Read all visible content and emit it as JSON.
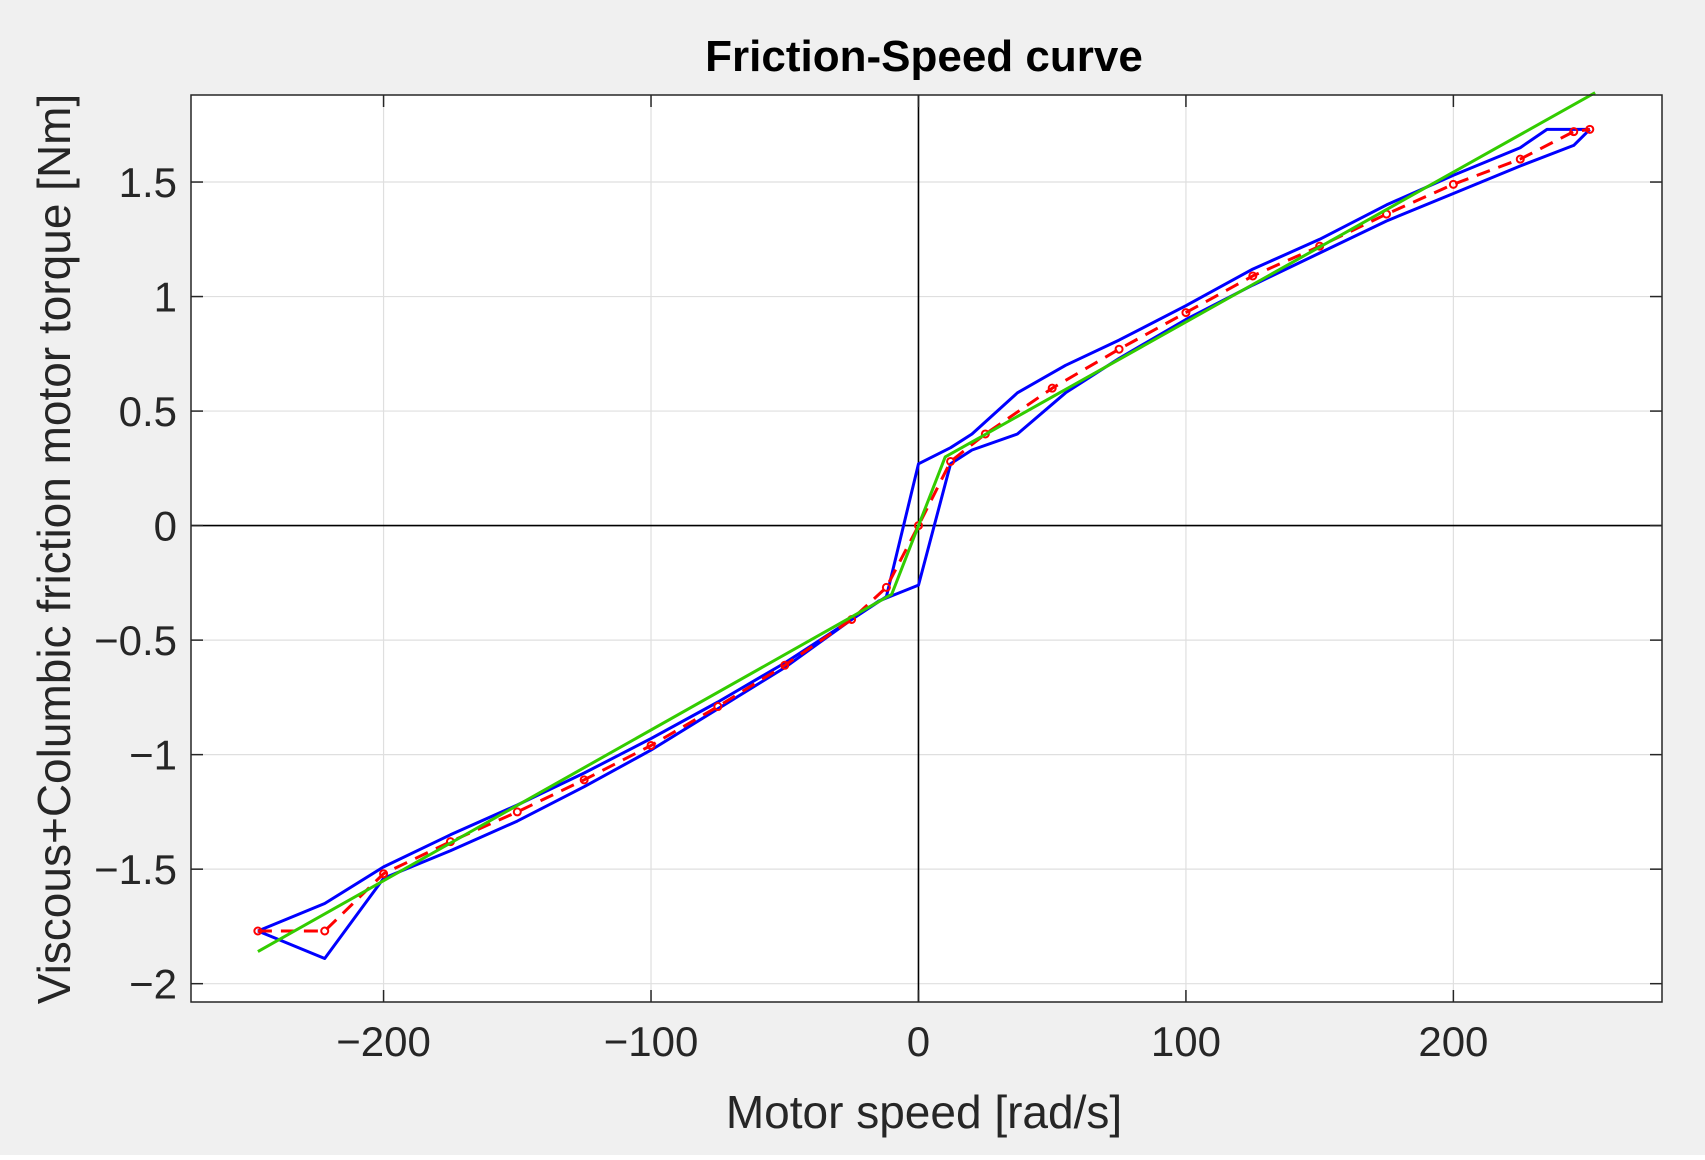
{
  "chart_data": {
    "type": "line",
    "title": "Friction-Speed curve",
    "xlabel": "Motor speed [rad/s]",
    "ylabel": "Viscous+Columbic friction motor torque [Nm]",
    "xlim": [
      -272,
      278
    ],
    "ylim": [
      -2.08,
      1.88
    ],
    "xticks": [
      -200,
      -100,
      0,
      100,
      200
    ],
    "xtick_labels": [
      "−200",
      "−100",
      "0",
      "100",
      "200"
    ],
    "yticks": [
      -2,
      -1.5,
      -1,
      -0.5,
      0,
      0.5,
      1,
      1.5
    ],
    "ytick_labels": [
      "−2",
      "−1.5",
      "−1",
      "−0.5",
      "0",
      "0.5",
      "1",
      "1.5"
    ],
    "grid": true,
    "background_color": "#f0f0f0",
    "axes_color": "#ffffff",
    "series": [
      {
        "color": "#0000ff",
        "style": "solid",
        "x": [
          -247,
          -222,
          -200,
          -175,
          -150,
          -125,
          -100,
          -75,
          -50,
          -25,
          -12,
          0,
          12,
          20,
          37,
          55,
          75,
          100,
          125,
          150,
          175,
          200,
          225,
          235,
          251
        ],
        "y": [
          -1.77,
          -1.65,
          -1.49,
          -1.35,
          -1.22,
          -1.08,
          -0.93,
          -0.77,
          -0.6,
          -0.41,
          -0.31,
          0.27,
          0.34,
          0.4,
          0.58,
          0.7,
          0.81,
          0.96,
          1.12,
          1.25,
          1.4,
          1.53,
          1.65,
          1.73,
          1.73
        ]
      },
      {
        "color": "#0000ff",
        "style": "solid",
        "x": [
          -247,
          -222,
          -200,
          -175,
          -150,
          -125,
          -100,
          -75,
          -50,
          -25,
          -15,
          0,
          12,
          20,
          37,
          55,
          75,
          100,
          125,
          150,
          175,
          200,
          225,
          245,
          251
        ],
        "y": [
          -1.77,
          -1.89,
          -1.54,
          -1.42,
          -1.29,
          -1.14,
          -0.98,
          -0.8,
          -0.62,
          -0.41,
          -0.33,
          -0.26,
          0.27,
          0.33,
          0.4,
          0.58,
          0.73,
          0.9,
          1.05,
          1.19,
          1.33,
          1.45,
          1.57,
          1.66,
          1.73
        ]
      },
      {
        "color": "#ff0000",
        "style": "dashed",
        "markers": true,
        "x": [
          -247,
          -222,
          -200,
          -175,
          -150,
          -125,
          -100,
          -75,
          -50,
          -25,
          -12,
          0,
          12,
          25,
          50,
          75,
          100,
          125,
          150,
          175,
          200,
          225,
          245,
          251
        ],
        "y": [
          -1.77,
          -1.77,
          -1.52,
          -1.38,
          -1.25,
          -1.11,
          -0.96,
          -0.79,
          -0.61,
          -0.41,
          -0.27,
          0.0,
          0.28,
          0.4,
          0.6,
          0.77,
          0.93,
          1.09,
          1.22,
          1.36,
          1.49,
          1.6,
          1.72,
          1.73
        ]
      },
      {
        "color": "#33cc00",
        "style": "solid",
        "x": [
          -247,
          -10,
          0,
          10,
          253
        ],
        "y": [
          -1.86,
          -0.3,
          0.0,
          0.3,
          1.89
        ]
      }
    ]
  }
}
